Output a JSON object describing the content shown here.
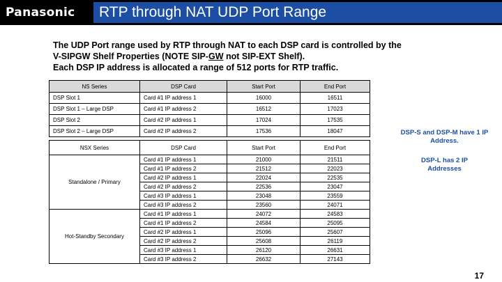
{
  "header": {
    "logo": "Panasonic",
    "title": "RTP through NAT UDP Port Range"
  },
  "intro": {
    "line1": "The UDP Port range used by RTP through NAT to each DSP card is controlled by the",
    "line2_pre": "V-SIPGW Shelf Properties (NOTE SIP-",
    "line2_u": "GW",
    "line2_post": " not SIP-EXT Shelf).",
    "line3": "Each DSP IP address is allocated a range of 512 ports for RTP traffic."
  },
  "ns_table": {
    "headers": [
      "NS Series",
      "DSP Card",
      "Start Port",
      "End Port"
    ],
    "rows": [
      [
        "DSP Slot 1",
        "Card #1 IP address 1",
        "16000",
        "16511"
      ],
      [
        "DSP Slot 1 – Large DSP",
        "Card #1 IP address 2",
        "16512",
        "17023"
      ],
      [
        "DSP Slot 2",
        "Card #2 IP address 1",
        "17024",
        "17535"
      ],
      [
        "DSP Slot 2 – Large DSP",
        "Card #2 IP address 2",
        "17536",
        "18047"
      ]
    ]
  },
  "nsx_table": {
    "headers": [
      "NSX Series",
      "DSP Card",
      "Start Port",
      "End Port"
    ],
    "groups": [
      {
        "label": "Standalone / Primary",
        "rows": [
          [
            "Card #1 IP address 1",
            "21000",
            "21511"
          ],
          [
            "Card #1 IP address 2",
            "21512",
            "22023"
          ],
          [
            "Card #2 IP address 1",
            "22024",
            "22535"
          ],
          [
            "Card #2 IP address 2",
            "22536",
            "23047"
          ],
          [
            "Card #3 IP address 1",
            "23048",
            "23559"
          ],
          [
            "Card #3 IP address 2",
            "23560",
            "24071"
          ]
        ]
      },
      {
        "label": "Hot-Standby Secondary",
        "rows": [
          [
            "Card #1 IP address 1",
            "24072",
            "24583"
          ],
          [
            "Card #1 IP address 2",
            "24584",
            "25095"
          ],
          [
            "Card #2 IP address 1",
            "25096",
            "25607"
          ],
          [
            "Card #2 IP address 2",
            "25608",
            "26119"
          ],
          [
            "Card #3 IP address 1",
            "26120",
            "26631"
          ],
          [
            "Card #3 IP address 2",
            "26632",
            "27143"
          ]
        ]
      }
    ]
  },
  "notes": {
    "note1": "DSP-S and DSP-M have 1 IP Address.",
    "note2": "DSP-L has 2 IP Addresses"
  },
  "page_number": "17",
  "colors": {
    "title_bar": "#1c4fa3",
    "header_bg": "#000000",
    "table_header": "#d9d9d9",
    "note_text": "#1c4fa3"
  }
}
